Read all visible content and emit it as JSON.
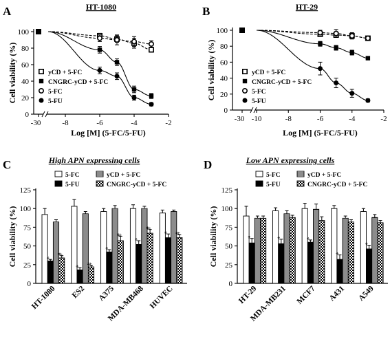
{
  "chart_data": [
    {
      "panel_label": "A",
      "title": "HT-1080",
      "type": "scatter",
      "xlabel": "Log [M] (5-FC/5-FU)",
      "ylabel": "Cell viability (%)",
      "x_ticks": [
        "-30",
        "-8",
        "-6",
        "-4",
        "-2"
      ],
      "y_ticks": [
        "0",
        "20",
        "40",
        "60",
        "80",
        "100"
      ],
      "ylim": [
        0,
        100
      ],
      "xlim": [
        -9,
        -2
      ],
      "axis_break": true,
      "legend_position": "lower-left",
      "series": [
        {
          "name": "yCD + 5-FC",
          "marker": "open-square",
          "line": "dashed",
          "control": 100,
          "x": [
            -6,
            -5,
            -4,
            -3
          ],
          "y": [
            95,
            91,
            86,
            78
          ],
          "err": [
            3,
            4,
            6,
            3
          ]
        },
        {
          "name": "CNGRC-yCD + 5-FC",
          "marker": "filled-square",
          "line": "solid",
          "control": 100,
          "x": [
            -6,
            -5,
            -4,
            -3
          ],
          "y": [
            78,
            63,
            30,
            22
          ],
          "err": [
            4,
            4,
            4,
            3
          ]
        },
        {
          "name": "5-FC",
          "marker": "open-circle",
          "line": "dashed",
          "control": 100,
          "x": [
            -6,
            -5,
            -4,
            -3
          ],
          "y": [
            92,
            90,
            88,
            85
          ],
          "err": [
            4,
            6,
            6,
            4
          ]
        },
        {
          "name": "5-FU",
          "marker": "filled-circle",
          "line": "solid",
          "control": 100,
          "x": [
            -6,
            -5,
            -4,
            -3
          ],
          "y": [
            53,
            46,
            20,
            12
          ],
          "err": [
            4,
            4,
            3,
            2
          ]
        }
      ]
    },
    {
      "panel_label": "B",
      "title": "HT-29",
      "type": "scatter",
      "xlabel": "Log [M] (5-FC/5-FU)",
      "ylabel": "Cell viability (%)",
      "x_ticks": [
        "-30",
        "-10",
        "-8",
        "-6",
        "-4",
        "-2"
      ],
      "y_ticks": [
        "0",
        "20",
        "40",
        "60",
        "80",
        "100"
      ],
      "ylim": [
        0,
        100
      ],
      "xlim": [
        -10,
        -2
      ],
      "axis_break": true,
      "legend_position": "lower-left",
      "series": [
        {
          "name": "yCD + 5-FC",
          "marker": "open-square",
          "line": "dashed",
          "control": 100,
          "x": [
            -6,
            -5,
            -4,
            -3
          ],
          "y": [
            95,
            94,
            93,
            90
          ],
          "err": [
            2,
            2,
            3,
            2
          ]
        },
        {
          "name": "CNGRC-yCD + 5-FC",
          "marker": "filled-square",
          "line": "solid",
          "control": 100,
          "x": [
            -6,
            -5,
            -4,
            -3
          ],
          "y": [
            83,
            78,
            72,
            65
          ],
          "err": [
            3,
            3,
            3,
            2
          ]
        },
        {
          "name": "5-FC",
          "marker": "open-circle",
          "line": "dashed",
          "control": 100,
          "x": [
            -6,
            -5,
            -4,
            -3
          ],
          "y": [
            97,
            96,
            93,
            90
          ],
          "err": [
            3,
            5,
            4,
            2
          ]
        },
        {
          "name": "5-FU",
          "marker": "filled-circle",
          "line": "solid",
          "control": 100,
          "x": [
            -6,
            -5,
            -4,
            -3
          ],
          "y": [
            52,
            34,
            21,
            12
          ],
          "err": [
            8,
            6,
            5,
            2
          ]
        }
      ]
    },
    {
      "panel_label": "C",
      "title": "High APN expressing cells",
      "type": "bar",
      "ylabel": "Cell viability (%)",
      "y_ticks": [
        "0",
        "25",
        "50",
        "75",
        "100",
        "125"
      ],
      "ylim": [
        0,
        125
      ],
      "legend_position": "top",
      "categories": [
        "HT-1080",
        "ES2",
        "A375",
        "MDA-MB468",
        "HUVEC"
      ],
      "series": [
        {
          "name": "5-FC",
          "fill": "white",
          "values": [
            92,
            103,
            96,
            100,
            94
          ],
          "err": [
            8,
            9,
            4,
            5,
            4
          ]
        },
        {
          "name": "5-FU",
          "fill": "black",
          "values": [
            30,
            18,
            42,
            52,
            61
          ],
          "err": [
            2,
            3,
            3,
            5,
            5
          ]
        },
        {
          "name": "yCD + 5-FC",
          "fill": "hatched",
          "values": [
            82,
            93,
            100,
            100,
            96
          ],
          "err": [
            3,
            3,
            4,
            3,
            2
          ]
        },
        {
          "name": "CNGRC-yCD + 5-FC",
          "fill": "checkered",
          "values": [
            34,
            22,
            57,
            67,
            61
          ],
          "err": [
            3,
            2,
            6,
            5,
            4
          ]
        }
      ],
      "annotations": {
        "5-FU": "*",
        "CNGRC-yCD + 5-FC": "#"
      }
    },
    {
      "panel_label": "D",
      "title": "Low APN expressing cells",
      "type": "bar",
      "ylabel": "Cell viability (%)",
      "y_ticks": [
        "0",
        "25",
        "50",
        "75",
        "100",
        "125"
      ],
      "ylim": [
        0,
        125
      ],
      "legend_position": "top",
      "categories": [
        "HT-29",
        "MDA-MB231",
        "MCF7",
        "A431",
        "A549"
      ],
      "series": [
        {
          "name": "5-FC",
          "fill": "white",
          "values": [
            90,
            97,
            100,
            100,
            96
          ],
          "err": [
            13,
            4,
            7,
            4,
            4
          ]
        },
        {
          "name": "5-FU",
          "fill": "black",
          "values": [
            54,
            53,
            55,
            32,
            46
          ],
          "err": [
            6,
            6,
            3,
            6,
            5
          ]
        },
        {
          "name": "yCD + 5-FC",
          "fill": "hatched",
          "values": [
            87,
            93,
            99,
            87,
            88
          ],
          "err": [
            3,
            4,
            7,
            3,
            4
          ]
        },
        {
          "name": "CNGRC-yCD + 5-FC",
          "fill": "checkered",
          "values": [
            87,
            88,
            84,
            82,
            81
          ],
          "err": [
            3,
            3,
            5,
            3,
            3
          ]
        }
      ],
      "annotations": {
        "5-FU": "*"
      }
    }
  ]
}
